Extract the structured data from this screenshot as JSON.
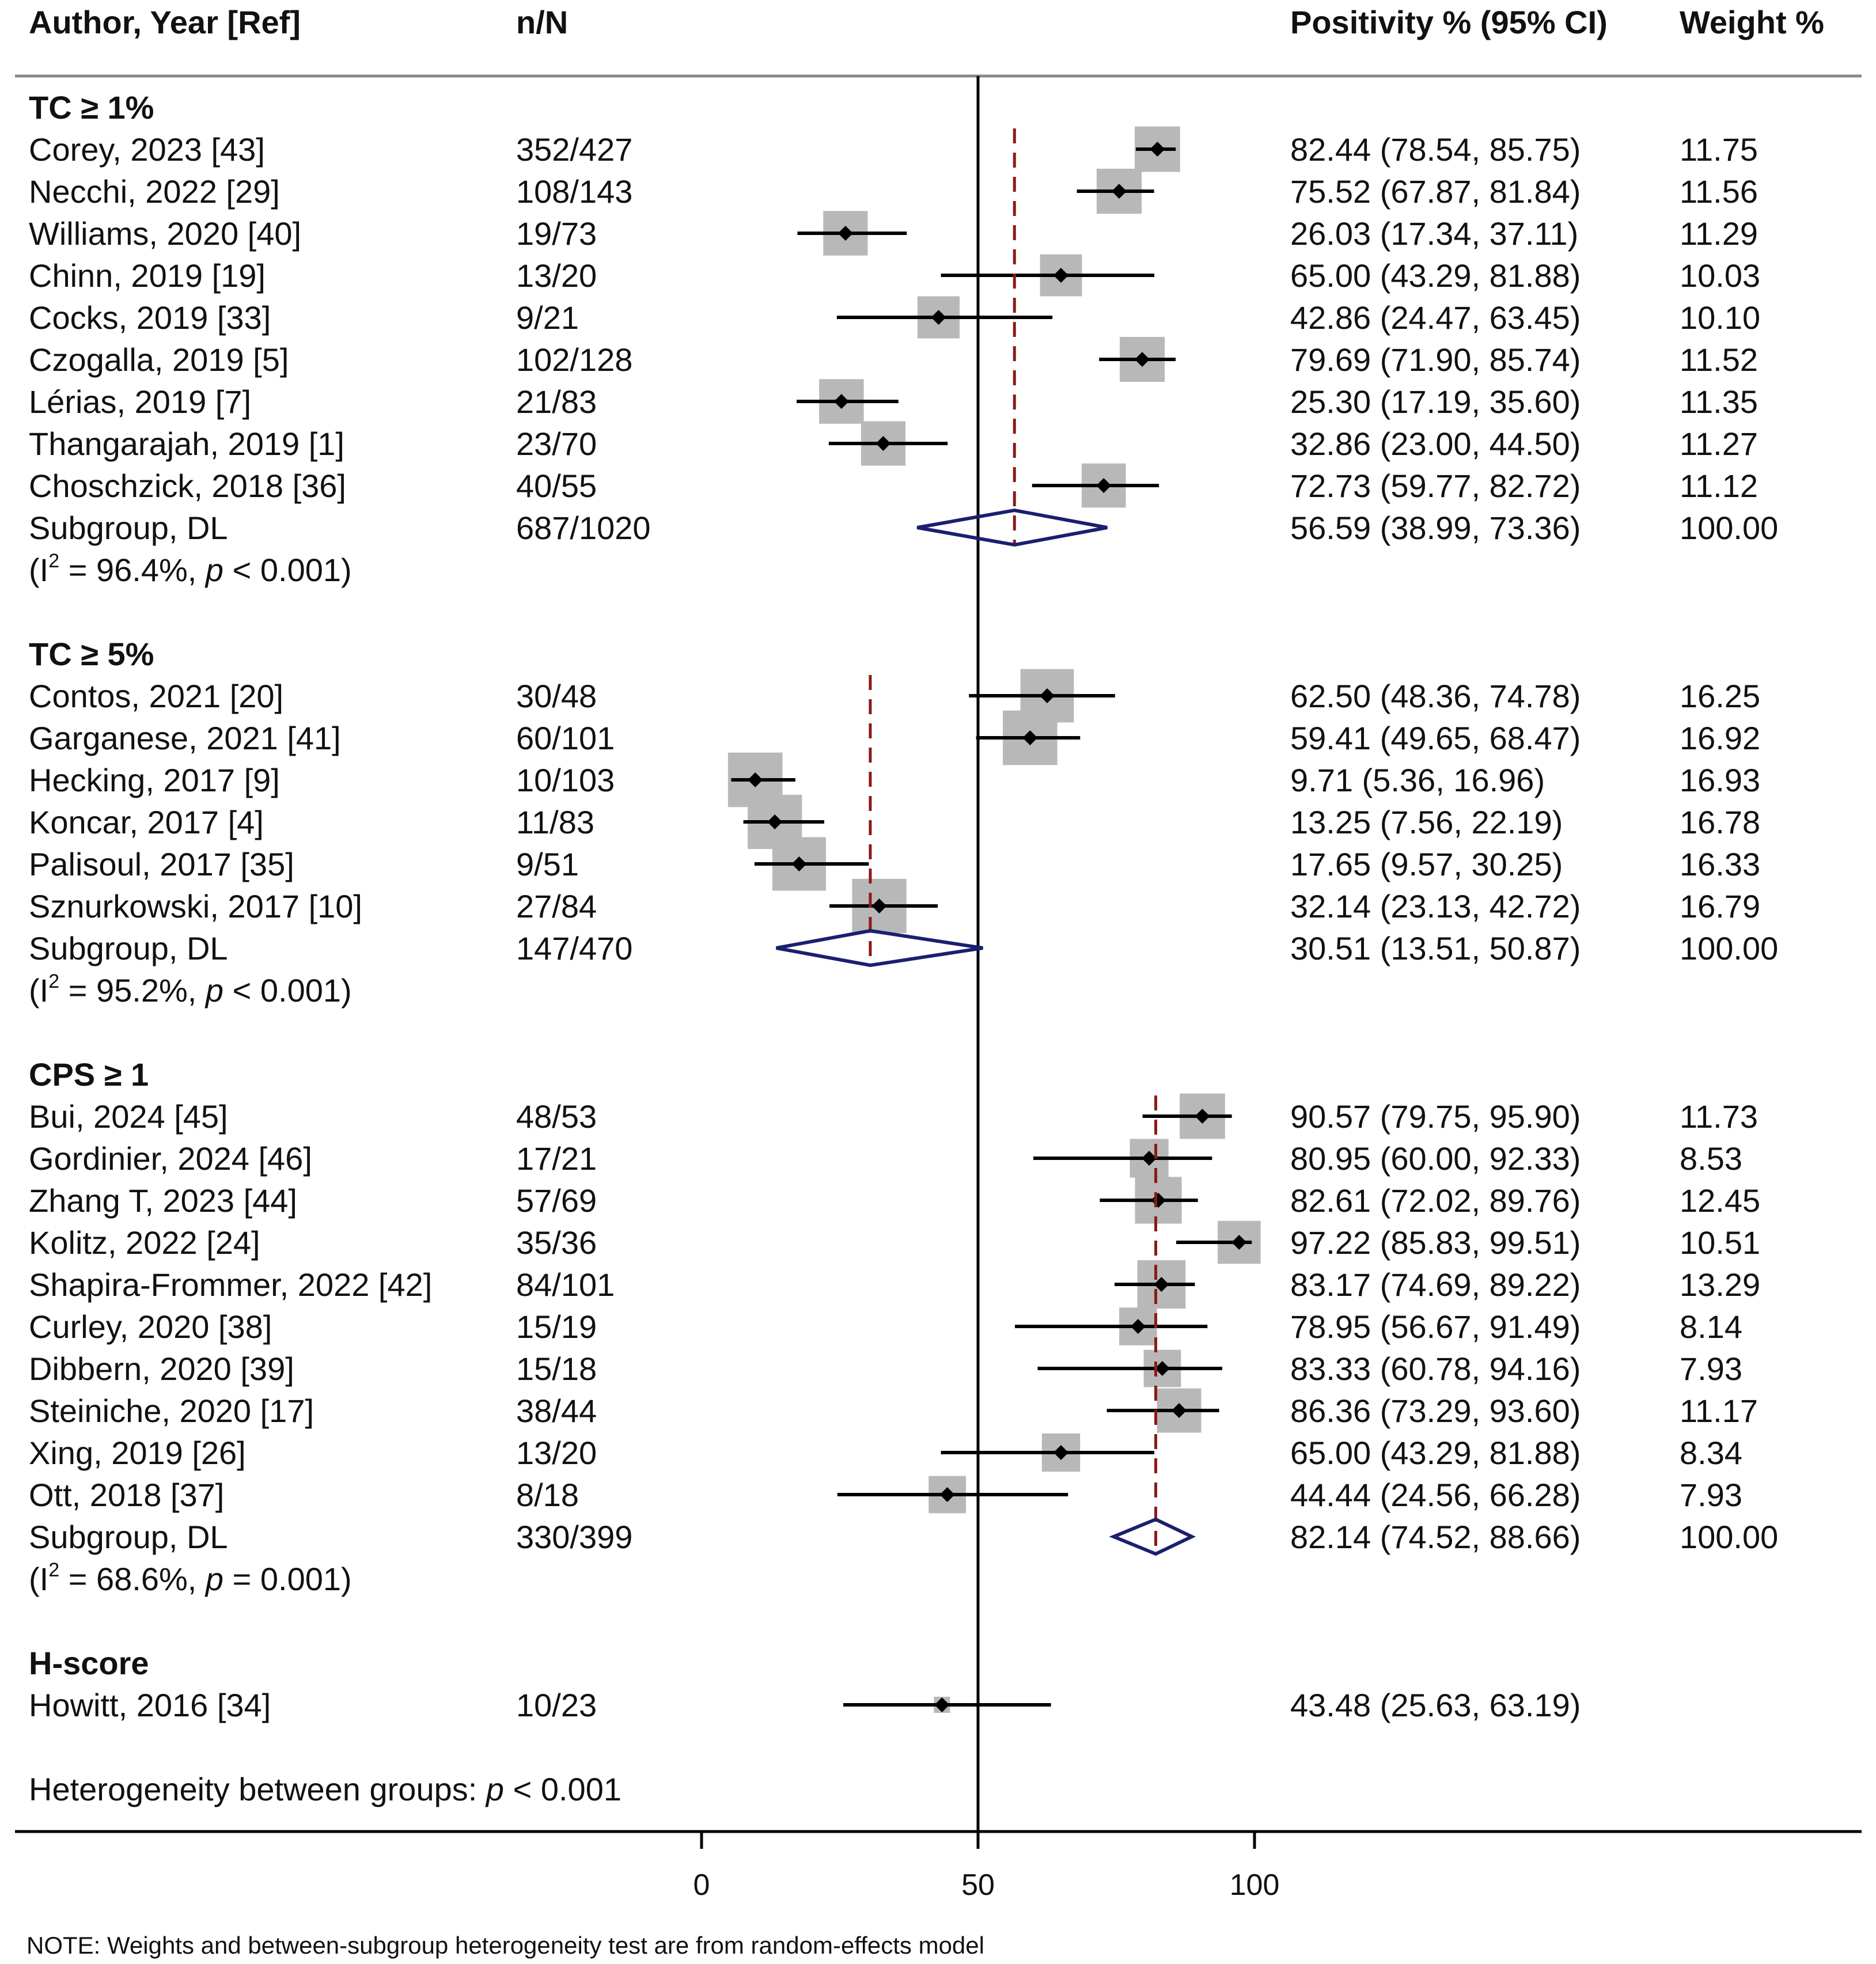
{
  "header": {
    "author": "Author, Year [Ref]",
    "nN": "n/N",
    "positivity": "Positivity % (95% CI)",
    "weight": "Weight %"
  },
  "chart_data": {
    "type": "forest",
    "xlim": [
      0,
      100
    ],
    "x_ticks": [
      0,
      50,
      100
    ],
    "null_line": 50,
    "subgroups": [
      {
        "title": "TC ≥ 1%",
        "studies": [
          {
            "label": "Corey, 2023 [43]",
            "nN": "352/427",
            "est": 82.44,
            "lo": 78.54,
            "hi": 85.75,
            "ci_text": "82.44 (78.54, 85.75)",
            "weight": "11.75"
          },
          {
            "label": "Necchi, 2022 [29]",
            "nN": "108/143",
            "est": 75.52,
            "lo": 67.87,
            "hi": 81.84,
            "ci_text": "75.52 (67.87, 81.84)",
            "weight": "11.56"
          },
          {
            "label": "Williams, 2020 [40]",
            "nN": "19/73",
            "est": 26.03,
            "lo": 17.34,
            "hi": 37.11,
            "ci_text": "26.03 (17.34, 37.11)",
            "weight": "11.29"
          },
          {
            "label": "Chinn, 2019 [19]",
            "nN": "13/20",
            "est": 65.0,
            "lo": 43.29,
            "hi": 81.88,
            "ci_text": "65.00 (43.29, 81.88)",
            "weight": "10.03"
          },
          {
            "label": "Cocks, 2019 [33]",
            "nN": "9/21",
            "est": 42.86,
            "lo": 24.47,
            "hi": 63.45,
            "ci_text": "42.86 (24.47, 63.45)",
            "weight": "10.10"
          },
          {
            "label": "Czogalla, 2019 [5]",
            "nN": "102/128",
            "est": 79.69,
            "lo": 71.9,
            "hi": 85.74,
            "ci_text": "79.69 (71.90, 85.74)",
            "weight": "11.52"
          },
          {
            "label": "Lérias, 2019 [7]",
            "nN": "21/83",
            "est": 25.3,
            "lo": 17.19,
            "hi": 35.6,
            "ci_text": "25.30 (17.19, 35.60)",
            "weight": "11.35"
          },
          {
            "label": "Thangarajah, 2019 [1]",
            "nN": "23/70",
            "est": 32.86,
            "lo": 23.0,
            "hi": 44.5,
            "ci_text": "32.86 (23.00, 44.50)",
            "weight": "11.27"
          },
          {
            "label": "Choschzick, 2018 [36]",
            "nN": "40/55",
            "est": 72.73,
            "lo": 59.77,
            "hi": 82.72,
            "ci_text": "72.73 (59.77, 82.72)",
            "weight": "11.12"
          }
        ],
        "summary": {
          "label": "Subgroup, DL",
          "nN": "687/1020",
          "est": 56.59,
          "lo": 38.99,
          "hi": 73.36,
          "ci_text": "56.59 (38.99, 73.36)",
          "weight": "100.00"
        },
        "het": {
          "i2": "96.4%",
          "p_op": "< 0.001"
        }
      },
      {
        "title": "TC ≥ 5%",
        "studies": [
          {
            "label": "Contos, 2021 [20]",
            "nN": "30/48",
            "est": 62.5,
            "lo": 48.36,
            "hi": 74.78,
            "ci_text": "62.50 (48.36, 74.78)",
            "weight": "16.25"
          },
          {
            "label": "Garganese, 2021 [41]",
            "nN": "60/101",
            "est": 59.41,
            "lo": 49.65,
            "hi": 68.47,
            "ci_text": "59.41 (49.65, 68.47)",
            "weight": "16.92"
          },
          {
            "label": "Hecking, 2017 [9]",
            "nN": "10/103",
            "est": 9.71,
            "lo": 5.36,
            "hi": 16.96,
            "ci_text": "9.71 (5.36, 16.96)",
            "weight": "16.93"
          },
          {
            "label": "Koncar, 2017 [4]",
            "nN": "11/83",
            "est": 13.25,
            "lo": 7.56,
            "hi": 22.19,
            "ci_text": "13.25 (7.56, 22.19)",
            "weight": "16.78"
          },
          {
            "label": "Palisoul, 2017 [35]",
            "nN": "9/51",
            "est": 17.65,
            "lo": 9.57,
            "hi": 30.25,
            "ci_text": "17.65 (9.57, 30.25)",
            "weight": "16.33"
          },
          {
            "label": "Sznurkowski, 2017 [10]",
            "nN": "27/84",
            "est": 32.14,
            "lo": 23.13,
            "hi": 42.72,
            "ci_text": "32.14 (23.13, 42.72)",
            "weight": "16.79"
          }
        ],
        "summary": {
          "label": "Subgroup, DL",
          "nN": "147/470",
          "est": 30.51,
          "lo": 13.51,
          "hi": 50.87,
          "ci_text": "30.51 (13.51, 50.87)",
          "weight": "100.00"
        },
        "het": {
          "i2": "95.2%",
          "p_op": "< 0.001"
        }
      },
      {
        "title": "CPS  ≥ 1",
        "studies": [
          {
            "label": "Bui, 2024 [45]",
            "nN": "48/53",
            "est": 90.57,
            "lo": 79.75,
            "hi": 95.9,
            "ci_text": "90.57 (79.75, 95.90)",
            "weight": "11.73"
          },
          {
            "label": "Gordinier, 2024 [46]",
            "nN": "17/21",
            "est": 80.95,
            "lo": 60.0,
            "hi": 92.33,
            "ci_text": "80.95 (60.00, 92.33)",
            "weight": "8.53"
          },
          {
            "label": "Zhang T, 2023 [44]",
            "nN": "57/69",
            "est": 82.61,
            "lo": 72.02,
            "hi": 89.76,
            "ci_text": "82.61 (72.02, 89.76)",
            "weight": "12.45"
          },
          {
            "label": "Kolitz, 2022 [24]",
            "nN": "35/36",
            "est": 97.22,
            "lo": 85.83,
            "hi": 99.51,
            "ci_text": "97.22 (85.83, 99.51)",
            "weight": "10.51"
          },
          {
            "label": "Shapira-Frommer, 2022 [42]",
            "nN": "84/101",
            "est": 83.17,
            "lo": 74.69,
            "hi": 89.22,
            "ci_text": "83.17 (74.69, 89.22)",
            "weight": "13.29"
          },
          {
            "label": "Curley, 2020 [38]",
            "nN": "15/19",
            "est": 78.95,
            "lo": 56.67,
            "hi": 91.49,
            "ci_text": "78.95 (56.67, 91.49)",
            "weight": "8.14"
          },
          {
            "label": "Dibbern, 2020 [39]",
            "nN": "15/18",
            "est": 83.33,
            "lo": 60.78,
            "hi": 94.16,
            "ci_text": "83.33 (60.78, 94.16)",
            "weight": "7.93"
          },
          {
            "label": "Steiniche, 2020 [17]",
            "nN": "38/44",
            "est": 86.36,
            "lo": 73.29,
            "hi": 93.6,
            "ci_text": "86.36 (73.29, 93.60)",
            "weight": "11.17"
          },
          {
            "label": "Xing, 2019 [26]",
            "nN": "13/20",
            "est": 65.0,
            "lo": 43.29,
            "hi": 81.88,
            "ci_text": "65.00 (43.29, 81.88)",
            "weight": "8.34"
          },
          {
            "label": "Ott, 2018 [37]",
            "nN": "8/18",
            "est": 44.44,
            "lo": 24.56,
            "hi": 66.28,
            "ci_text": "44.44 (24.56, 66.28)",
            "weight": "7.93"
          }
        ],
        "summary": {
          "label": "Subgroup, DL",
          "nN": "330/399",
          "est": 82.14,
          "lo": 74.52,
          "hi": 88.66,
          "ci_text": "82.14 (74.52, 88.66)",
          "weight": "100.00"
        },
        "het": {
          "i2": "68.6%",
          "p_op": "= 0.001"
        }
      },
      {
        "title": "H-score",
        "studies": [
          {
            "label": "Howitt, 2016 [34]",
            "nN": "10/23",
            "est": 43.48,
            "lo": 25.63,
            "hi": 63.19,
            "ci_text": "43.48 (25.63, 63.19)",
            "weight": ""
          }
        ],
        "summary": null,
        "het": null
      }
    ],
    "overall_het": {
      "label": "Heterogeneity between groups:",
      "p_op": "< 0.001"
    }
  },
  "footer": {
    "note": "NOTE: Weights and between-subgroup heterogeneity test are from random-effects model"
  },
  "colors": {
    "box": "#b8b8b8",
    "marker": "#000000",
    "diamond": "#1a1f6e",
    "subgroup_line": "#8b1a1a",
    "rule": "#888888"
  }
}
